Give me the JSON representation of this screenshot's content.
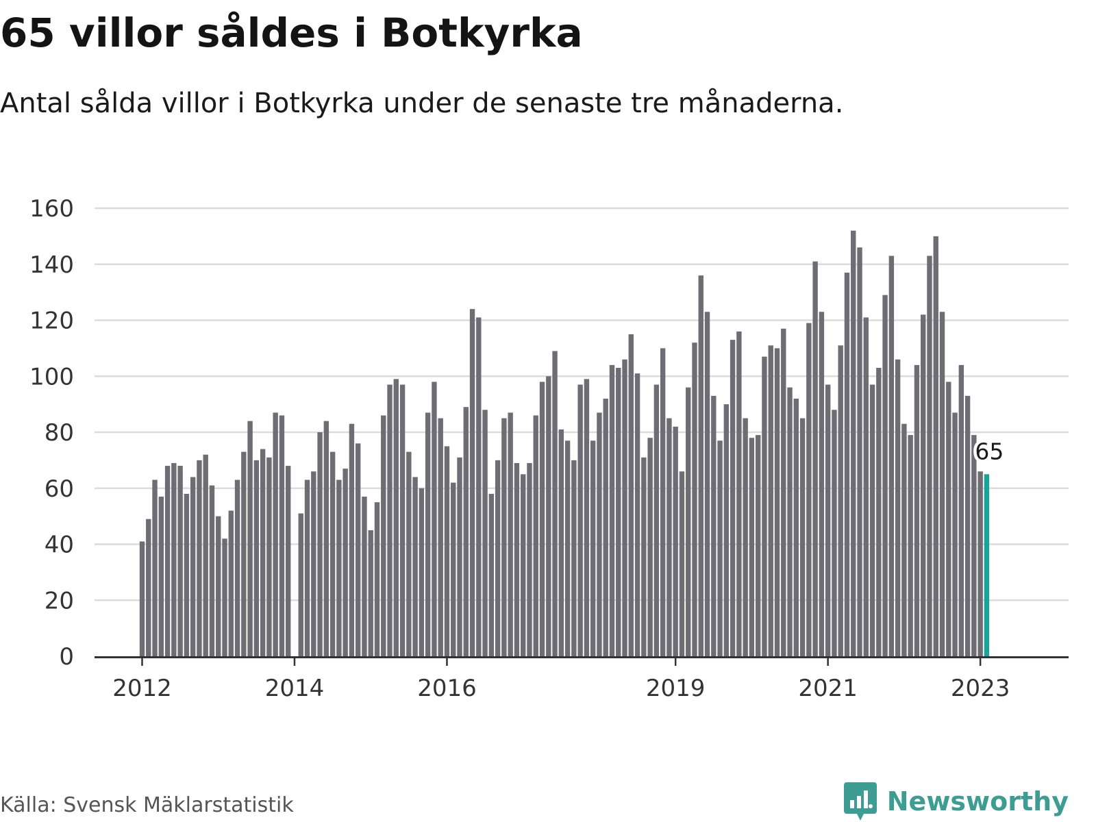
{
  "title": "65 villor såldes i Botkyrka",
  "subtitle": "Antal sålda villor i Botkyrka under de senaste tre månaderna.",
  "source": "Källa: Svensk Mäklarstatistik",
  "brand": {
    "name": "Newsworthy",
    "icon": "bar-chart-speech-bubble-icon",
    "color": "#3e9d93"
  },
  "colors": {
    "bar": "#6e6d73",
    "highlight": "#1aa39a",
    "grid": "#dcdcdc",
    "axis": "#333333"
  },
  "chart_data": {
    "type": "bar",
    "title": "65 villor såldes i Botkyrka",
    "subtitle": "Antal sålda villor i Botkyrka under de senaste tre månaderna.",
    "xlabel": "",
    "ylabel": "",
    "ylim": [
      0,
      160
    ],
    "yticks": [
      0,
      20,
      40,
      60,
      80,
      100,
      120,
      140,
      160
    ],
    "grid": true,
    "start": "2012-01",
    "frequency": "monthly",
    "xtick_labels": [
      {
        "label": "2012",
        "month_index": 0
      },
      {
        "label": "2014",
        "month_index": 24
      },
      {
        "label": "2016",
        "month_index": 48
      },
      {
        "label": "2019",
        "month_index": 84
      },
      {
        "label": "2021",
        "month_index": 108
      },
      {
        "label": "2023",
        "month_index": 132
      }
    ],
    "values": [
      41,
      49,
      63,
      57,
      68,
      69,
      68,
      58,
      64,
      70,
      72,
      61,
      50,
      42,
      52,
      63,
      73,
      84,
      70,
      74,
      71,
      87,
      86,
      68,
      0,
      51,
      63,
      66,
      80,
      84,
      73,
      63,
      67,
      83,
      76,
      57,
      45,
      55,
      86,
      97,
      99,
      97,
      73,
      64,
      60,
      87,
      98,
      85,
      75,
      62,
      71,
      89,
      124,
      121,
      88,
      58,
      70,
      85,
      87,
      69,
      65,
      69,
      86,
      98,
      100,
      109,
      81,
      77,
      70,
      97,
      99,
      77,
      87,
      92,
      104,
      103,
      106,
      115,
      101,
      71,
      78,
      97,
      110,
      85,
      82,
      66,
      96,
      112,
      136,
      123,
      93,
      77,
      90,
      113,
      116,
      85,
      78,
      79,
      107,
      111,
      110,
      117,
      96,
      92,
      85,
      119,
      141,
      123,
      97,
      88,
      111,
      137,
      152,
      146,
      121,
      97,
      103,
      129,
      143,
      106,
      83,
      79,
      104,
      122,
      143,
      150,
      123,
      98,
      87,
      104,
      93,
      79,
      66,
      65
    ],
    "highlight": {
      "index": 133,
      "value": 65,
      "label": "65"
    }
  }
}
